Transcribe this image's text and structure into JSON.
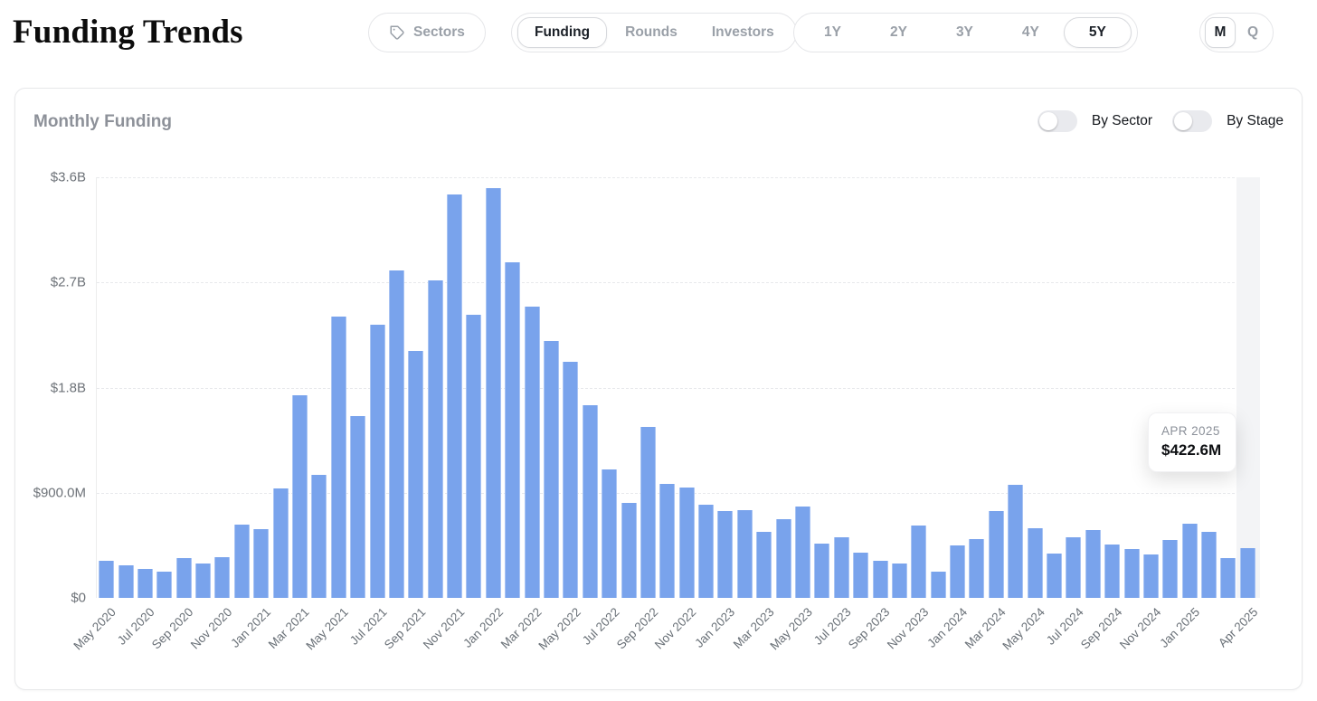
{
  "header": {
    "title": "Funding Trends",
    "sectors_button": {
      "label": "Sectors",
      "icon": "tag-icon"
    },
    "view_tabs": [
      {
        "label": "Funding",
        "active": true
      },
      {
        "label": "Rounds",
        "active": false
      },
      {
        "label": "Investors",
        "active": false
      }
    ],
    "range_tabs": [
      {
        "label": "1Y",
        "active": false
      },
      {
        "label": "2Y",
        "active": false
      },
      {
        "label": "3Y",
        "active": false
      },
      {
        "label": "4Y",
        "active": false
      },
      {
        "label": "5Y",
        "active": true
      }
    ],
    "granularity_tabs": [
      {
        "label": "M",
        "active": true
      },
      {
        "label": "Q",
        "active": false
      }
    ]
  },
  "card": {
    "title": "Monthly Funding",
    "toggles": [
      {
        "label": "By Sector",
        "on": false
      },
      {
        "label": "By Stage",
        "on": false
      }
    ]
  },
  "tooltip": {
    "label": "APR 2025",
    "value": "$422.6M"
  },
  "chart_data": {
    "type": "bar",
    "title": "Monthly Funding",
    "unit": "USD millions",
    "ylim": [
      0,
      3600
    ],
    "y_tick_labels": [
      "$0",
      "$900.0M",
      "$1.8B",
      "$2.7B",
      "$3.6B"
    ],
    "y_tick_values": [
      0,
      900,
      1800,
      2700,
      3600
    ],
    "grid": "horizontal-dashed",
    "legend": "none",
    "bar_color": "#79a3ec",
    "highlighted_index": 59,
    "highlighted_value_label": "$422.6M",
    "x": [
      "May 2020",
      "Jun 2020",
      "Jul 2020",
      "Aug 2020",
      "Sep 2020",
      "Oct 2020",
      "Nov 2020",
      "Dec 2020",
      "Jan 2021",
      "Feb 2021",
      "Mar 2021",
      "Apr 2021",
      "May 2021",
      "Jun 2021",
      "Jul 2021",
      "Aug 2021",
      "Sep 2021",
      "Oct 2021",
      "Nov 2021",
      "Dec 2021",
      "Jan 2022",
      "Feb 2022",
      "Mar 2022",
      "Apr 2022",
      "May 2022",
      "Jun 2022",
      "Jul 2022",
      "Aug 2022",
      "Sep 2022",
      "Oct 2022",
      "Nov 2022",
      "Dec 2022",
      "Jan 2023",
      "Feb 2023",
      "Mar 2023",
      "Apr 2023",
      "May 2023",
      "Jun 2023",
      "Jul 2023",
      "Aug 2023",
      "Sep 2023",
      "Oct 2023",
      "Nov 2023",
      "Dec 2023",
      "Jan 2024",
      "Feb 2024",
      "Mar 2024",
      "Apr 2024",
      "May 2024",
      "Jun 2024",
      "Jul 2024",
      "Aug 2024",
      "Sep 2024",
      "Oct 2024",
      "Nov 2024",
      "Dec 2024",
      "Jan 2025",
      "Feb 2025",
      "Mar 2025",
      "Apr 2025"
    ],
    "values": [
      320,
      278,
      246,
      228,
      338,
      296,
      348,
      626,
      590,
      938,
      1736,
      1050,
      2410,
      1556,
      2340,
      2806,
      2116,
      2720,
      3452,
      2426,
      3506,
      2876,
      2496,
      2200,
      2022,
      1650,
      1102,
      816,
      1462,
      972,
      942,
      800,
      740,
      754,
      568,
      676,
      780,
      466,
      520,
      390,
      320,
      298,
      616,
      228,
      452,
      502,
      744,
      970,
      596,
      383,
      519,
      581,
      456,
      415,
      368,
      498,
      632,
      562,
      337,
      422.6
    ],
    "x_tick_indices": [
      0,
      2,
      4,
      6,
      8,
      10,
      12,
      14,
      16,
      18,
      20,
      22,
      24,
      26,
      28,
      30,
      32,
      34,
      36,
      38,
      40,
      42,
      44,
      46,
      48,
      50,
      52,
      54,
      56,
      59
    ],
    "x_tick_labels": [
      "May 2020",
      "Jul 2020",
      "Sep 2020",
      "Nov 2020",
      "Jan 2021",
      "Mar 2021",
      "May 2021",
      "Jul 2021",
      "Sep 2021",
      "Nov 2021",
      "Jan 2022",
      "Mar 2022",
      "May 2022",
      "Jul 2022",
      "Sep 2022",
      "Nov 2022",
      "Jan 2023",
      "Mar 2023",
      "May 2023",
      "Jul 2023",
      "Sep 2023",
      "Nov 2023",
      "Jan 2024",
      "Mar 2024",
      "May 2024",
      "Jul 2024",
      "Sep 2024",
      "Nov 2024",
      "Jan 2025",
      "Apr 2025"
    ]
  }
}
